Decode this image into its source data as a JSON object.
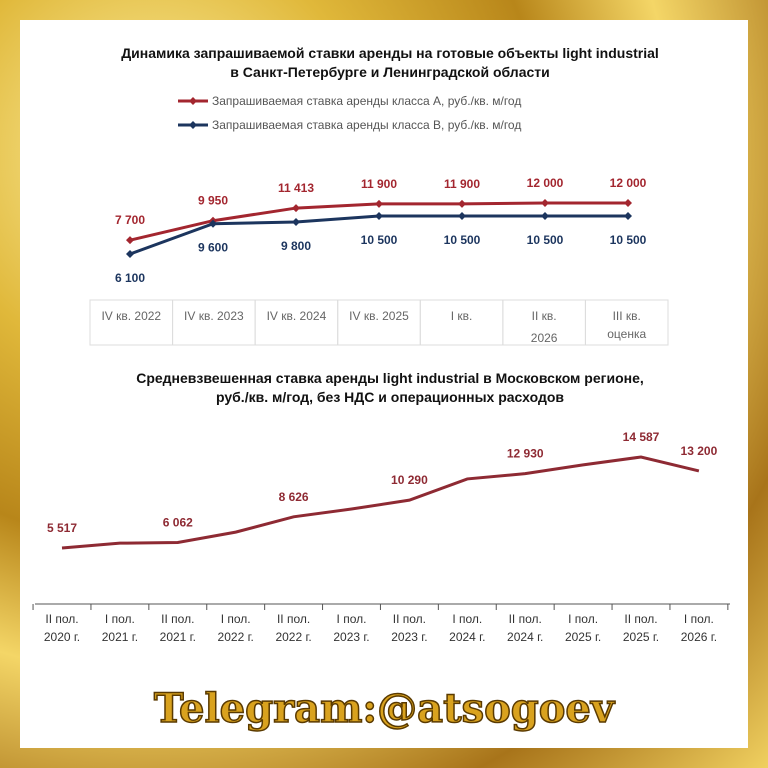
{
  "chart_data": [
    {
      "type": "line",
      "title": "Динамика запрашиваемой ставки аренды на готовые объекты light industrial",
      "subtitle": "в Санкт-Петербурге и Ленинградской области",
      "categories": [
        "IV кв. 2022",
        "IV кв. 2023",
        "IV кв. 2024",
        "IV кв. 2025",
        "I кв.",
        "II кв.",
        "III кв."
      ],
      "x_group_label": "2026",
      "x_note": "оценка",
      "series": [
        {
          "name": "Запрашиваемая ставка аренды класса А, руб./кв. м/год",
          "color": "#a3262f",
          "values": [
            7700,
            9950,
            11413,
            11900,
            11900,
            12000,
            12000
          ],
          "value_labels": [
            "7 700",
            "9 950",
            "11 413",
            "11 900",
            "11 900",
            "12 000",
            "12 000"
          ]
        },
        {
          "name": "Запрашиваемая ставка аренды класса В, руб./кв. м/год",
          "color": "#1c355e",
          "values": [
            6100,
            9600,
            9800,
            10500,
            10500,
            10500,
            10500
          ],
          "value_labels": [
            "6 100",
            "9 600",
            "9 800",
            "10 500",
            "10 500",
            "10 500",
            "10 500"
          ]
        }
      ]
    },
    {
      "type": "line",
      "title": "Средневзвешенная ставка аренды light industrial в Московском регионе,",
      "subtitle": "руб./кв. м/год, без НДС и операционных расходов",
      "categories": [
        "II пол. 2020 г.",
        "I пол. 2021 г.",
        "II пол. 2021 г.",
        "I пол. 2022 г.",
        "II пол. 2022 г.",
        "I пол. 2023 г.",
        "II пол. 2023 г.",
        "I пол. 2024 г.",
        "II пол. 2024 г.",
        "I пол. 2025 г.",
        "II пол. 2025 г.",
        "I пол. 2026 г."
      ],
      "series": [
        {
          "name": null,
          "color": "#8e2a33",
          "values": [
            5517,
            6000,
            6062,
            7100,
            8626,
            9400,
            10290,
            12400,
            12930,
            13800,
            14587,
            13200
          ],
          "value_labels": [
            "5 517",
            null,
            "6 062",
            null,
            "8 626",
            null,
            "10 290",
            null,
            "12 930",
            null,
            "14 587",
            "13 200"
          ]
        }
      ]
    }
  ],
  "watermark": "Telegram:@atsogoev"
}
